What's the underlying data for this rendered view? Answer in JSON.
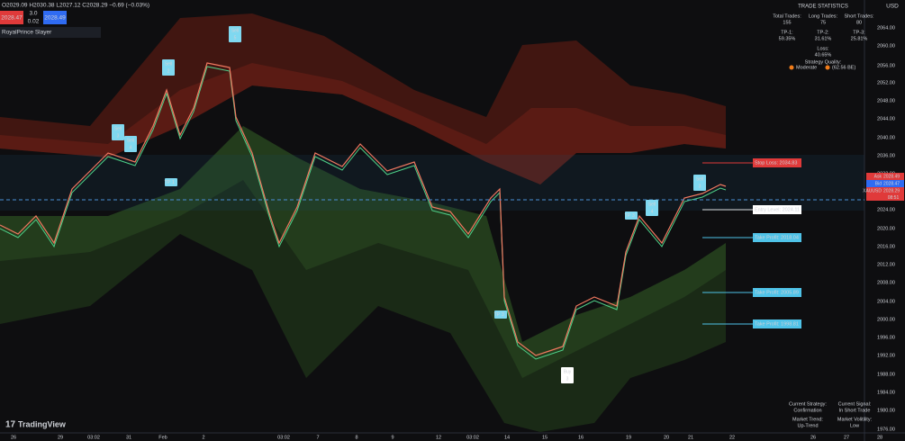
{
  "header": {
    "ohlc": "O2029.09 H2030.38 L2027.12 C2028.29 −0.69 (−0.03%)",
    "sell_price": "2028.47",
    "lot": "3.0",
    "spread": "0.02",
    "buy_price": "2028.49",
    "indicator": "RoyalPrince Slayer",
    "currency": "USD"
  },
  "price_axis": {
    "ticks": [
      "2064.00",
      "2060.00",
      "2056.00",
      "2052.00",
      "2048.00",
      "2044.00",
      "2040.00",
      "2036.00",
      "2032.00",
      "2024.00",
      "2020.00",
      "2016.00",
      "2012.00",
      "2008.00",
      "2004.00",
      "2000.00",
      "1996.00",
      "1992.00",
      "1988.00",
      "1984.00",
      "1980.00",
      "1976.00"
    ],
    "badges": [
      {
        "tag": "Ask",
        "price": "2028.49"
      },
      {
        "tag": "Bid",
        "price": "2028.47"
      },
      {
        "tag": "XAUUSD",
        "price": "2028.29"
      }
    ],
    "countdown": "08:51"
  },
  "time_axis": {
    "ticks": [
      "26",
      "29",
      "03:02",
      "31",
      "Feb",
      "2",
      "03:02",
      "7",
      "8",
      "9",
      "12",
      "03:02",
      "14",
      "15",
      "16",
      "19",
      "20",
      "21",
      "22",
      "26",
      "27",
      "28"
    ]
  },
  "trade_statistics": {
    "title": "TRADE STATISTICS",
    "rows": [
      [
        {
          "label": "Total Trades:",
          "value": "155"
        },
        {
          "label": "Long Trades:",
          "value": "75"
        },
        {
          "label": "Short Trades:",
          "value": "80"
        }
      ],
      [
        {
          "label": "TP-1:",
          "value": "59.35%"
        },
        {
          "label": "TP-2:",
          "value": "31.61%"
        },
        {
          "label": "TP-3:",
          "value": "25.81%"
        }
      ],
      [
        {
          "label": "Loss:",
          "value": "40.65%"
        }
      ]
    ],
    "quality_label": "Strategy Quality:",
    "quality": "Moderate",
    "quality_score": "(62.56 BE)"
  },
  "levels": [
    "Stop Loss: 2034.83",
    "Entry Level: 2024.11",
    "Take Profit: 2018.04",
    "Take Profit: 2005.89",
    "Take Profit: 1998.81"
  ],
  "signals": [
    {
      "kind": "Sell",
      "n": "3"
    },
    {
      "kind": "Sell",
      "n": "4"
    },
    {
      "kind": "Sell",
      "n": "2"
    },
    {
      "kind": "Sell",
      "n": "5"
    },
    {
      "kind": "TP",
      "n": "1"
    },
    {
      "kind": "TP",
      "n": "3"
    },
    {
      "kind": "Buy",
      "n": "3"
    },
    {
      "kind": "TP",
      "n": "3"
    },
    {
      "kind": "Sell",
      "n": "4"
    },
    {
      "kind": "Sell",
      "n": "3"
    }
  ],
  "status": [
    {
      "label": "Current Strategy:",
      "value": "Confirmation"
    },
    {
      "label": "Current Signal:",
      "value": "In Short Trade"
    },
    {
      "label": "Market Trend:",
      "value": "Up-Trend"
    },
    {
      "label": "Market Volitility:",
      "value": "Low"
    }
  ],
  "brand": "TradingView"
}
